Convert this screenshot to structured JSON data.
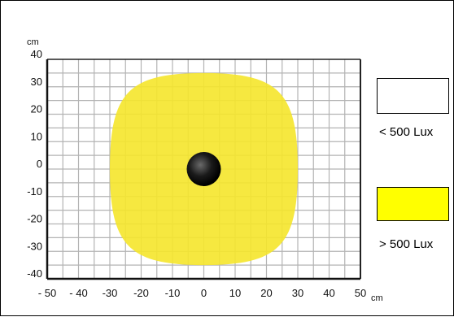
{
  "chart_data": {
    "type": "scatter",
    "x_unit": "cm",
    "y_unit": "cm",
    "xlim": [
      -50,
      50
    ],
    "ylim": [
      -40,
      40
    ],
    "x_ticks": [
      -50,
      -40,
      -30,
      -20,
      -10,
      0,
      10,
      20,
      30,
      40,
      50
    ],
    "x_tick_labels": [
      "- 50",
      "- 40",
      "-30",
      "-20",
      "-10",
      "0",
      "10",
      "20",
      "30",
      "40",
      "50"
    ],
    "y_ticks": [
      40,
      30,
      20,
      10,
      0,
      -10,
      -20,
      -30,
      -40
    ],
    "y_tick_labels": [
      "40",
      "30",
      "20",
      "10",
      "0",
      "-10",
      "-20",
      "-30",
      "-40"
    ],
    "grid_step_x": 5,
    "grid_step_y": 5,
    "grid": true,
    "illuminated_area": {
      "label": "> 500 Lux",
      "color": "#f5e62b",
      "x_extent": [
        -30,
        30
      ],
      "y_extent": [
        -35,
        35
      ]
    },
    "lamp_position": {
      "x": 0,
      "y": 0
    }
  },
  "legend": [
    {
      "label": "< 500 Lux",
      "color": "#ffffff"
    },
    {
      "label": "> 500 Lux",
      "color": "#ffff00"
    }
  ]
}
